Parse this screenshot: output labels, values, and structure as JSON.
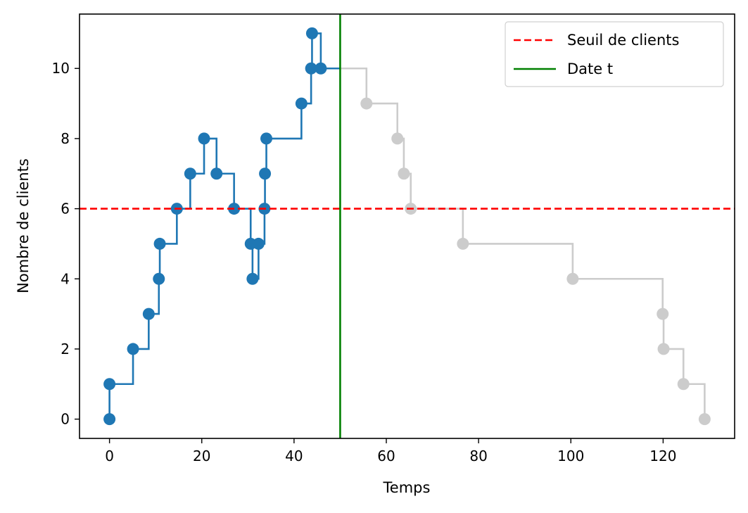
{
  "chart_data": {
    "type": "line",
    "xlabel": "Temps",
    "ylabel": "Nombre de clients",
    "xlim": [
      -6.5,
      135.5
    ],
    "ylim": [
      -0.55,
      11.55
    ],
    "xticks": [
      0,
      20,
      40,
      60,
      80,
      100,
      120
    ],
    "yticks": [
      0,
      2,
      4,
      6,
      8,
      10
    ],
    "grid": false,
    "legend_position": "top-right",
    "colors": {
      "past": "#1f77b4",
      "future": "#cccccc",
      "threshold": "#ff0000",
      "date": "#008000"
    },
    "series": [
      {
        "role": "past",
        "step": "post",
        "x": [
          0,
          0,
          5.1,
          8.5,
          10.7,
          10.9,
          14.6,
          17.5,
          20.5,
          23.2,
          27.0,
          30.6,
          31.0,
          32.3,
          33.6,
          33.7,
          34.0,
          41.6,
          43.7,
          43.9,
          45.8
        ],
        "y": [
          0,
          1,
          2,
          3,
          4,
          5,
          6,
          7,
          8,
          7,
          6,
          5,
          4,
          5,
          6,
          7,
          8,
          9,
          10,
          11,
          10
        ],
        "line_end_x": 50
      },
      {
        "role": "future",
        "step": "post",
        "x": [
          50,
          55.7,
          62.4,
          63.8,
          65.3,
          76.6,
          100.4,
          119.9,
          120.1,
          124.4,
          129.0
        ],
        "y": [
          10,
          9,
          8,
          7,
          6,
          5,
          4,
          3,
          2,
          1,
          0
        ],
        "markers_from_index": 1
      }
    ],
    "threshold": {
      "name": "Seuil de clients",
      "y": 6,
      "style": "dashed"
    },
    "date_line": {
      "name": "Date t",
      "x": 50
    },
    "legend": [
      "Seuil de clients",
      "Date t"
    ]
  }
}
